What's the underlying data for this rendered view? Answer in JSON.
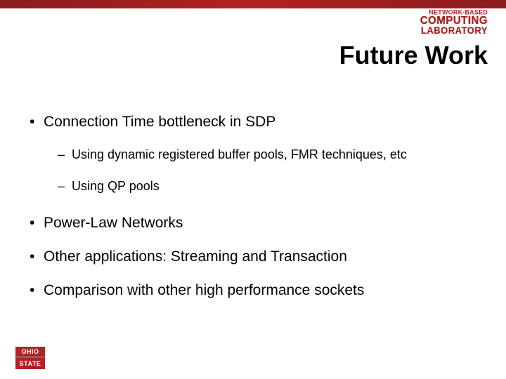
{
  "colors": {
    "accent": "#b22222",
    "background": "#ffffff",
    "text": "#000000"
  },
  "lab_logo": {
    "line1": "NETWORK-BASED",
    "line2": "COMPUTING",
    "line3": "LABORATORY"
  },
  "title": "Future Work",
  "bullets": [
    {
      "text": "Connection Time bottleneck in SDP",
      "children": [
        "Using dynamic registered buffer pools, FMR techniques, etc",
        "Using QP pools"
      ]
    },
    {
      "text": "Power-Law Networks",
      "children": []
    },
    {
      "text": "Other applications: Streaming and Transaction",
      "children": []
    },
    {
      "text": "Comparison with other high performance sockets",
      "children": []
    }
  ],
  "footer_logo": {
    "top": "OHIO",
    "bottom": "STATE"
  }
}
